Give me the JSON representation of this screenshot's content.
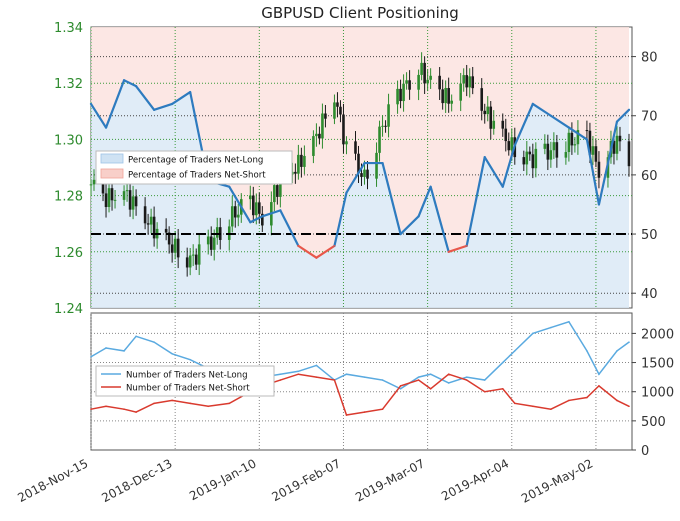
{
  "chart_data": [
    {
      "type": "line",
      "title": "GBPUSD Client Positioning",
      "x_dates": [
        "2018-11-15",
        "2018-11-20",
        "2018-11-26",
        "2018-11-30",
        "2018-12-06",
        "2018-12-12",
        "2018-12-18",
        "2018-12-24",
        "2018-12-31",
        "2019-01-07",
        "2019-01-11",
        "2019-01-17",
        "2019-01-23",
        "2019-01-29",
        "2019-02-04",
        "2019-02-08",
        "2019-02-14",
        "2019-02-20",
        "2019-02-26",
        "2019-03-04",
        "2019-03-08",
        "2019-03-14",
        "2019-03-20",
        "2019-03-26",
        "2019-04-01",
        "2019-04-05",
        "2019-04-11",
        "2019-04-17",
        "2019-04-23",
        "2019-04-29",
        "2019-05-03",
        "2019-05-09",
        "2019-05-13"
      ],
      "xticks": [
        "2018-Nov-15",
        "2018-Dec-13",
        "2019-Jan-10",
        "2019-Feb-07",
        "2019-Mar-07",
        "2019-Apr-04",
        "2019-May-02"
      ],
      "y_left_ticks": [
        "1.24",
        "1.26",
        "1.28",
        "1.30",
        "1.32",
        "1.34"
      ],
      "y_left_range": [
        1.24,
        1.34
      ],
      "y_right_ticks": [
        "40",
        "50",
        "60",
        "70",
        "80"
      ],
      "y_right_range": [
        37.5,
        85
      ],
      "reference_line": 50,
      "price_close": [
        1.284,
        1.279,
        1.281,
        1.276,
        1.268,
        1.262,
        1.257,
        1.262,
        1.272,
        1.278,
        1.272,
        1.285,
        1.291,
        1.301,
        1.316,
        1.297,
        1.286,
        1.305,
        1.317,
        1.325,
        1.32,
        1.314,
        1.322,
        1.31,
        1.301,
        1.296,
        1.293,
        1.296,
        1.299,
        1.301,
        1.289,
        1.3,
        1.291
      ],
      "series": [
        {
          "name": "Percentage of Traders Net-Long",
          "color": "#2e7bbf",
          "values": [
            72,
            68,
            76,
            75,
            71,
            72,
            74,
            59,
            58,
            52,
            53,
            54,
            48,
            46,
            48,
            57,
            62,
            62,
            50,
            53,
            58,
            47,
            48,
            63,
            58,
            65,
            72,
            70,
            68,
            66,
            55,
            69,
            71
          ]
        },
        {
          "name": "Percentage of Traders Net-Short",
          "color": "#e8574a"
        }
      ],
      "legend": "upper-left"
    },
    {
      "type": "line",
      "x_dates": [
        "2018-11-15",
        "2018-11-20",
        "2018-11-26",
        "2018-11-30",
        "2018-12-06",
        "2018-12-12",
        "2018-12-18",
        "2018-12-24",
        "2018-12-31",
        "2019-01-07",
        "2019-01-11",
        "2019-01-17",
        "2019-01-23",
        "2019-01-29",
        "2019-02-04",
        "2019-02-08",
        "2019-02-14",
        "2019-02-20",
        "2019-02-26",
        "2019-03-04",
        "2019-03-08",
        "2019-03-14",
        "2019-03-20",
        "2019-03-26",
        "2019-04-01",
        "2019-04-05",
        "2019-04-11",
        "2019-04-17",
        "2019-04-23",
        "2019-04-29",
        "2019-05-03",
        "2019-05-09",
        "2019-05-13"
      ],
      "y_ticks": [
        "0",
        "500",
        "1000",
        "1500",
        "2000"
      ],
      "y_range": [
        0,
        2350
      ],
      "series": [
        {
          "name": "Number of Traders Net-Long",
          "color": "#5aaae0",
          "values": [
            1600,
            1750,
            1700,
            1950,
            1850,
            1650,
            1550,
            1400,
            1300,
            1200,
            1250,
            1300,
            1350,
            1450,
            1200,
            1300,
            1250,
            1200,
            1050,
            1250,
            1300,
            1150,
            1250,
            1200,
            1500,
            1700,
            2000,
            2100,
            2200,
            1700,
            1300,
            1700,
            1850
          ]
        },
        {
          "name": "Number of Traders Net-Short",
          "color": "#d93a2e",
          "values": [
            700,
            750,
            700,
            650,
            800,
            850,
            800,
            750,
            800,
            1000,
            1100,
            1200,
            1300,
            1250,
            1200,
            600,
            650,
            700,
            1100,
            1200,
            1050,
            1300,
            1200,
            1000,
            1050,
            800,
            750,
            700,
            850,
            900,
            1100,
            850,
            750
          ]
        }
      ],
      "legend": "upper-left"
    }
  ]
}
